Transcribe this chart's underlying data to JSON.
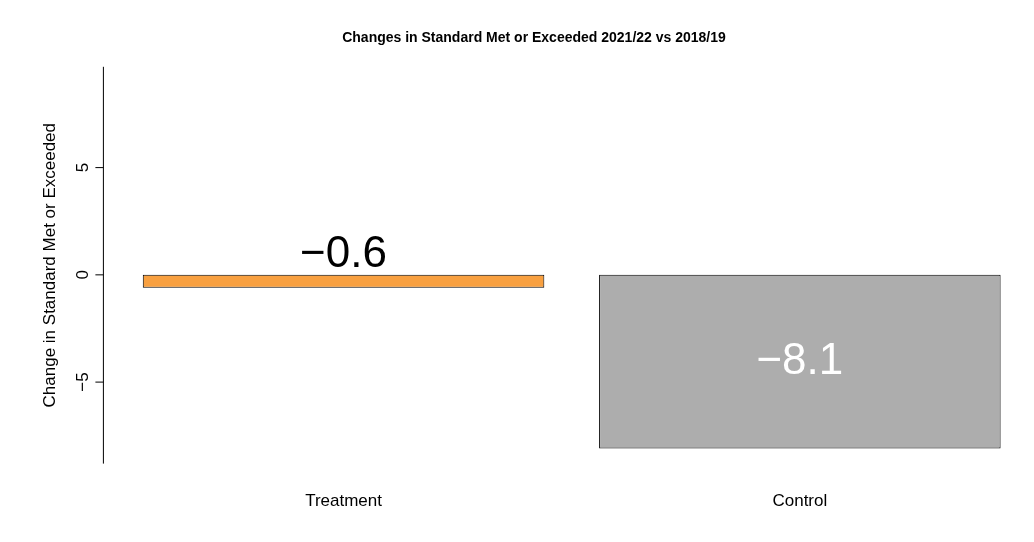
{
  "chart_data": {
    "type": "bar",
    "title": "Changes in Standard Met or Exceeded 2021/22 vs 2018/19",
    "ylabel": "Change in Standard Met or Exceeded",
    "categories": [
      "Treatment",
      "Control"
    ],
    "values": [
      -0.6,
      -8.1
    ],
    "colors": [
      "#f8a040",
      "#adadad"
    ],
    "ylim": [
      -8.8,
      9.7
    ],
    "yticks": [
      -5,
      0,
      5
    ],
    "grid": false,
    "legend": false,
    "data_labels": true
  }
}
